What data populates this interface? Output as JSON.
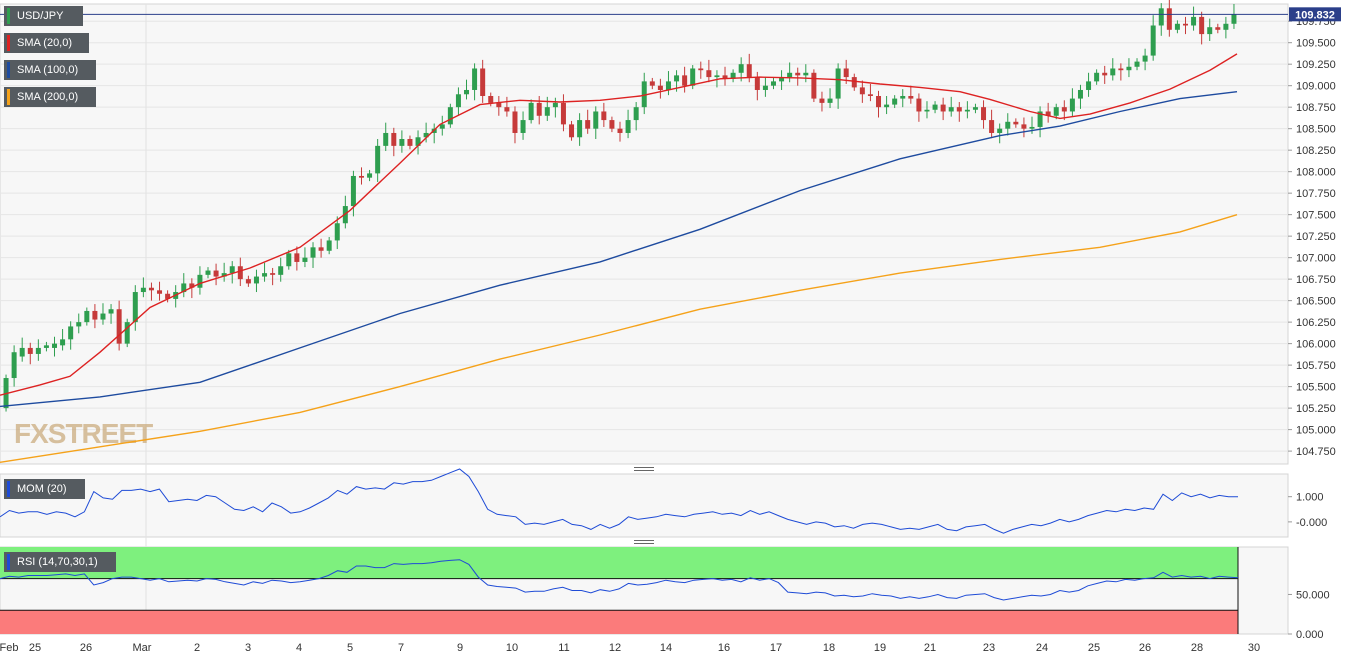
{
  "chart_data": [
    {
      "type": "candlestick",
      "symbol": "USD/JPY",
      "last_price": "109.832",
      "ylim": [
        104.6,
        109.95
      ],
      "y_ticks": [
        "109.750",
        "109.500",
        "109.250",
        "109.000",
        "108.750",
        "108.500",
        "108.250",
        "108.000",
        "107.750",
        "107.500",
        "107.250",
        "107.000",
        "106.750",
        "106.500",
        "106.250",
        "106.000",
        "105.750",
        "105.500",
        "105.250",
        "105.000",
        "104.750"
      ],
      "x_ticks": [
        "Feb",
        "25",
        "26",
        "Mar",
        "2",
        "3",
        "4",
        "5",
        "7",
        "9",
        "10",
        "11",
        "12",
        "14",
        "16",
        "17",
        "18",
        "19",
        "21",
        "23",
        "24",
        "25",
        "26",
        "28",
        "30"
      ],
      "series": [
        {
          "name": "SMA (20,0)",
          "color": "#dd2222",
          "key": "sma20",
          "points": [
            [
              0,
              105.4
            ],
            [
              40,
              105.52
            ],
            [
              70,
              105.62
            ],
            [
              100,
              105.9
            ],
            [
              150,
              106.42
            ],
            [
              200,
              106.7
            ],
            [
              250,
              106.88
            ],
            [
              300,
              107.12
            ],
            [
              350,
              107.55
            ],
            [
              400,
              108.1
            ],
            [
              440,
              108.55
            ],
            [
              480,
              108.78
            ],
            [
              520,
              108.83
            ],
            [
              560,
              108.81
            ],
            [
              600,
              108.83
            ],
            [
              640,
              108.88
            ],
            [
              680,
              108.98
            ],
            [
              720,
              109.08
            ],
            [
              760,
              109.1
            ],
            [
              800,
              109.09
            ],
            [
              840,
              109.07
            ],
            [
              880,
              109.02
            ],
            [
              920,
              108.98
            ],
            [
              960,
              108.93
            ],
            [
              990,
              108.84
            ],
            [
              1030,
              108.7
            ],
            [
              1060,
              108.62
            ],
            [
              1090,
              108.67
            ],
            [
              1130,
              108.8
            ],
            [
              1170,
              108.96
            ],
            [
              1210,
              109.18
            ],
            [
              1237,
              109.37
            ]
          ]
        },
        {
          "name": "SMA (100,0)",
          "color": "#1e4b9f",
          "key": "sma100",
          "points": [
            [
              0,
              105.27
            ],
            [
              100,
              105.38
            ],
            [
              200,
              105.55
            ],
            [
              300,
              105.95
            ],
            [
              400,
              106.35
            ],
            [
              500,
              106.68
            ],
            [
              600,
              106.95
            ],
            [
              700,
              107.33
            ],
            [
              800,
              107.78
            ],
            [
              900,
              108.15
            ],
            [
              1000,
              108.42
            ],
            [
              1060,
              108.53
            ],
            [
              1120,
              108.7
            ],
            [
              1180,
              108.85
            ],
            [
              1237,
              108.93
            ]
          ]
        },
        {
          "name": "SMA (200,0)",
          "color": "#f5a21a",
          "key": "sma200",
          "points": [
            [
              0,
              104.62
            ],
            [
              100,
              104.8
            ],
            [
              200,
              104.98
            ],
            [
              300,
              105.2
            ],
            [
              400,
              105.5
            ],
            [
              500,
              105.82
            ],
            [
              600,
              106.1
            ],
            [
              700,
              106.4
            ],
            [
              800,
              106.62
            ],
            [
              900,
              106.82
            ],
            [
              1000,
              106.98
            ],
            [
              1100,
              107.12
            ],
            [
              1180,
              107.3
            ],
            [
              1237,
              107.5
            ]
          ]
        }
      ]
    },
    {
      "type": "line",
      "name": "MOM (20)",
      "ylim": [
        -0.6,
        1.9
      ],
      "y_ticks": [
        "1.000",
        "-0.000"
      ],
      "values": [
        0.2,
        0.45,
        0.35,
        0.4,
        0.4,
        0.3,
        0.4,
        0.35,
        0.2,
        0.4,
        1.2,
        0.95,
        0.9,
        1.25,
        1.25,
        1.3,
        1.2,
        1.3,
        0.8,
        0.85,
        0.9,
        0.85,
        1.05,
        1.0,
        0.75,
        0.5,
        0.45,
        0.6,
        0.4,
        0.75,
        0.6,
        0.35,
        0.4,
        0.55,
        0.75,
        0.95,
        1.25,
        1.1,
        1.4,
        1.3,
        1.35,
        1.3,
        1.55,
        1.5,
        1.6,
        1.6,
        1.65,
        1.8,
        1.95,
        2.1,
        1.8,
        1.2,
        0.5,
        0.3,
        0.25,
        0.2,
        -0.1,
        -0.05,
        -0.1,
        0.0,
        0.1,
        -0.1,
        -0.15,
        -0.3,
        -0.1,
        -0.25,
        -0.1,
        0.2,
        0.1,
        0.15,
        0.2,
        0.3,
        0.25,
        0.2,
        0.3,
        0.35,
        0.4,
        0.3,
        0.35,
        0.25,
        0.45,
        0.3,
        0.4,
        0.25,
        0.1,
        0.0,
        -0.1,
        0.0,
        -0.05,
        -0.2,
        -0.15,
        -0.25,
        -0.1,
        -0.05,
        -0.1,
        -0.2,
        -0.3,
        -0.25,
        -0.3,
        -0.2,
        -0.1,
        -0.3,
        -0.35,
        -0.2,
        -0.15,
        -0.1,
        -0.3,
        -0.45,
        -0.3,
        -0.2,
        -0.1,
        -0.15,
        -0.05,
        0.1,
        0.0,
        0.1,
        0.25,
        0.35,
        0.45,
        0.4,
        0.5,
        0.45,
        0.55,
        0.5,
        1.1,
        0.85,
        1.15,
        1.0,
        1.1,
        0.95,
        1.05,
        1.0,
        1.0
      ]
    },
    {
      "type": "line",
      "name": "RSI (14,70,30,1)",
      "ylim": [
        0,
        110
      ],
      "bands": {
        "upper": 70,
        "lower": 30
      },
      "y_ticks": [
        "50.000",
        "0.000"
      ],
      "values": [
        70,
        73,
        72,
        74,
        74,
        74,
        75,
        76,
        74,
        76,
        62,
        65,
        70,
        72,
        72,
        70,
        68,
        70,
        66,
        67,
        68,
        67,
        70,
        69,
        66,
        64,
        62,
        66,
        64,
        68,
        67,
        65,
        66,
        68,
        70,
        74,
        80,
        78,
        86,
        86,
        84,
        84,
        89,
        88,
        89,
        89,
        90,
        92,
        93,
        94,
        88,
        72,
        62,
        60,
        59,
        58,
        53,
        54,
        54,
        57,
        59,
        55,
        55,
        52,
        56,
        54,
        57,
        64,
        62,
        63,
        65,
        68,
        66,
        65,
        68,
        69,
        70,
        68,
        69,
        66,
        71,
        68,
        70,
        65,
        53,
        52,
        51,
        53,
        52,
        48,
        49,
        47,
        48,
        51,
        49,
        48,
        45,
        47,
        45,
        47,
        50,
        46,
        45,
        49,
        50,
        51,
        46,
        43,
        45,
        47,
        49,
        48,
        50,
        55,
        53,
        55,
        61,
        64,
        67,
        66,
        69,
        68,
        70,
        71,
        78,
        72,
        74,
        72,
        73,
        70,
        73,
        72,
        71
      ]
    }
  ],
  "candles": [
    [
      105.25,
      105.6
    ],
    [
      105.6,
      105.9
    ],
    [
      105.85,
      105.95
    ],
    [
      105.95,
      105.88
    ],
    [
      105.88,
      105.95
    ],
    [
      105.95,
      105.98
    ],
    [
      105.95,
      106.0
    ],
    [
      105.98,
      106.05
    ],
    [
      106.05,
      106.2
    ],
    [
      106.2,
      106.25
    ],
    [
      106.25,
      106.38
    ],
    [
      106.38,
      106.28
    ],
    [
      106.28,
      106.35
    ],
    [
      106.35,
      106.4
    ],
    [
      106.4,
      106.0
    ],
    [
      106.0,
      106.25
    ],
    [
      106.25,
      106.6
    ],
    [
      106.6,
      106.65
    ],
    [
      106.65,
      106.62
    ],
    [
      106.62,
      106.58
    ],
    [
      106.58,
      106.52
    ],
    [
      106.52,
      106.6
    ],
    [
      106.6,
      106.7
    ],
    [
      106.7,
      106.65
    ],
    [
      106.65,
      106.8
    ],
    [
      106.8,
      106.85
    ],
    [
      106.85,
      106.78
    ],
    [
      106.78,
      106.82
    ],
    [
      106.82,
      106.9
    ],
    [
      106.9,
      106.75
    ],
    [
      106.75,
      106.7
    ],
    [
      106.7,
      106.78
    ],
    [
      106.78,
      106.82
    ],
    [
      106.82,
      106.8
    ],
    [
      106.8,
      106.9
    ],
    [
      106.9,
      107.05
    ],
    [
      107.05,
      106.95
    ],
    [
      106.95,
      107.0
    ],
    [
      107.0,
      107.12
    ],
    [
      107.12,
      107.08
    ],
    [
      107.08,
      107.2
    ],
    [
      107.2,
      107.4
    ],
    [
      107.4,
      107.6
    ],
    [
      107.6,
      107.95
    ],
    [
      107.95,
      107.93
    ],
    [
      107.93,
      107.98
    ],
    [
      107.98,
      108.3
    ],
    [
      108.3,
      108.45
    ],
    [
      108.45,
      108.3
    ],
    [
      108.3,
      108.38
    ],
    [
      108.38,
      108.3
    ],
    [
      108.3,
      108.4
    ],
    [
      108.4,
      108.45
    ],
    [
      108.45,
      108.5
    ],
    [
      108.5,
      108.55
    ],
    [
      108.55,
      108.75
    ],
    [
      108.75,
      108.9
    ],
    [
      108.9,
      108.95
    ],
    [
      108.95,
      109.2
    ],
    [
      109.2,
      108.88
    ],
    [
      108.88,
      108.8
    ],
    [
      108.8,
      108.75
    ],
    [
      108.75,
      108.7
    ],
    [
      108.7,
      108.45
    ],
    [
      108.45,
      108.6
    ],
    [
      108.6,
      108.8
    ],
    [
      108.8,
      108.65
    ],
    [
      108.65,
      108.75
    ],
    [
      108.75,
      108.8
    ],
    [
      108.8,
      108.55
    ],
    [
      108.55,
      108.4
    ],
    [
      108.4,
      108.6
    ],
    [
      108.6,
      108.5
    ],
    [
      108.5,
      108.7
    ],
    [
      108.7,
      108.6
    ],
    [
      108.6,
      108.5
    ],
    [
      108.5,
      108.45
    ],
    [
      108.45,
      108.6
    ],
    [
      108.6,
      108.75
    ],
    [
      108.75,
      109.05
    ],
    [
      109.05,
      109.0
    ],
    [
      109.0,
      108.95
    ],
    [
      108.95,
      109.05
    ],
    [
      109.05,
      109.12
    ],
    [
      109.12,
      109.0
    ],
    [
      109.0,
      109.2
    ],
    [
      109.2,
      109.18
    ],
    [
      109.18,
      109.1
    ],
    [
      109.1,
      109.12
    ],
    [
      109.12,
      109.08
    ],
    [
      109.08,
      109.15
    ],
    [
      109.15,
      109.25
    ],
    [
      109.25,
      109.1
    ],
    [
      109.1,
      108.95
    ],
    [
      108.95,
      109.0
    ],
    [
      109.0,
      109.05
    ],
    [
      109.05,
      109.1
    ],
    [
      109.1,
      109.15
    ],
    [
      109.15,
      109.12
    ],
    [
      109.12,
      109.15
    ],
    [
      109.15,
      108.85
    ],
    [
      108.85,
      108.8
    ],
    [
      108.8,
      108.85
    ],
    [
      108.85,
      109.2
    ],
    [
      109.2,
      109.1
    ],
    [
      109.1,
      108.98
    ],
    [
      108.98,
      108.9
    ],
    [
      108.9,
      108.88
    ],
    [
      108.88,
      108.75
    ],
    [
      108.75,
      108.78
    ],
    [
      108.78,
      108.85
    ],
    [
      108.85,
      108.88
    ],
    [
      108.88,
      108.85
    ],
    [
      108.85,
      108.7
    ],
    [
      108.7,
      108.72
    ],
    [
      108.72,
      108.78
    ],
    [
      108.78,
      108.7
    ],
    [
      108.7,
      108.75
    ],
    [
      108.75,
      108.7
    ],
    [
      108.7,
      108.72
    ],
    [
      108.72,
      108.75
    ],
    [
      108.75,
      108.6
    ],
    [
      108.6,
      108.45
    ],
    [
      108.45,
      108.5
    ],
    [
      108.5,
      108.58
    ],
    [
      108.58,
      108.55
    ],
    [
      108.55,
      108.5
    ],
    [
      108.5,
      108.52
    ],
    [
      108.52,
      108.7
    ],
    [
      108.7,
      108.65
    ],
    [
      108.65,
      108.75
    ],
    [
      108.75,
      108.7
    ],
    [
      108.7,
      108.85
    ],
    [
      108.85,
      108.95
    ],
    [
      108.95,
      109.05
    ],
    [
      109.05,
      109.15
    ],
    [
      109.15,
      109.12
    ],
    [
      109.12,
      109.2
    ],
    [
      109.2,
      109.18
    ],
    [
      109.18,
      109.22
    ],
    [
      109.22,
      109.28
    ],
    [
      109.28,
      109.35
    ],
    [
      109.35,
      109.7
    ],
    [
      109.7,
      109.9
    ],
    [
      109.9,
      109.65
    ],
    [
      109.65,
      109.72
    ],
    [
      109.72,
      109.7
    ],
    [
      109.7,
      109.8
    ],
    [
      109.8,
      109.6
    ],
    [
      109.6,
      109.68
    ],
    [
      109.68,
      109.65
    ],
    [
      109.65,
      109.72
    ],
    [
      109.72,
      109.83
    ]
  ],
  "panels": {
    "price_tag": "USD/JPY",
    "legend": [
      {
        "label": "SMA (20,0)",
        "color": "#dd2222"
      },
      {
        "label": "SMA (100,0)",
        "color": "#1e4b9f"
      },
      {
        "label": "SMA (200,0)",
        "color": "#f5a21a"
      }
    ],
    "mom_tag": "MOM (20)",
    "rsi_tag": "RSI (14,70,30,1)",
    "logo": "FXSTREET"
  },
  "colors": {
    "up": "#2e9e4f",
    "down": "#c63a3a",
    "rsi_upper_band": "#7ef07e",
    "rsi_lower_band": "#fb7b7b",
    "indicator_line": "#1e4bd6"
  }
}
